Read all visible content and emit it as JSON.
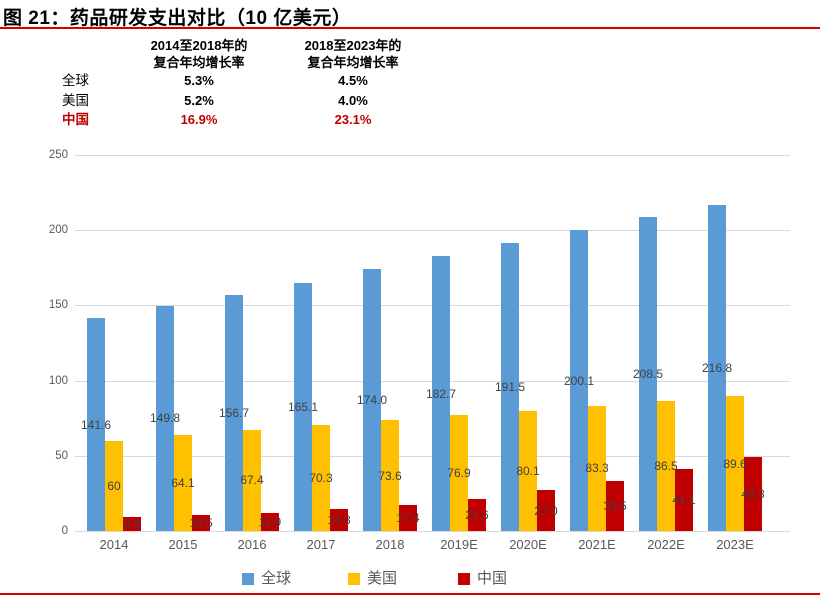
{
  "title": "图 21：药品研发支出对比（10 亿美元）",
  "accent_colors": {
    "rule_red": "#D40000",
    "highlight_red": "#C00000",
    "axis_text": "#595959",
    "gridline": "#D9D9D9",
    "data_label": "#404040"
  },
  "cagr_table": {
    "column_headers": [
      [
        "2014至2018年的",
        "复合年均增长率"
      ],
      [
        "2018至2023年的",
        "复合年均增长率"
      ]
    ],
    "rows": [
      {
        "label": "全球",
        "values": [
          "5.3%",
          "4.5%"
        ],
        "highlight": false
      },
      {
        "label": "美国",
        "values": [
          "5.2%",
          "4.0%"
        ],
        "highlight": false
      },
      {
        "label": "中国",
        "values": [
          "16.9%",
          "23.1%"
        ],
        "highlight": true
      }
    ]
  },
  "chart_data": {
    "type": "bar",
    "title": "药品研发支出对比（10 亿美元）",
    "unit": "10 亿美元",
    "categories": [
      "2014",
      "2015",
      "2016",
      "2017",
      "2018",
      "2019E",
      "2020E",
      "2021E",
      "2022E",
      "2023E"
    ],
    "series": [
      {
        "key": "global",
        "name": "全球",
        "color": "#5B9BD5",
        "values": [
          141.6,
          149.8,
          156.7,
          165.1,
          174.0,
          182.7,
          191.5,
          200.1,
          208.5,
          216.8
        ],
        "labels": [
          "141.6",
          "149.8",
          "156.7",
          "165.1",
          "174.0",
          "182.7",
          "191.5",
          "200.1",
          "208.5",
          "216.8"
        ]
      },
      {
        "key": "us",
        "name": "美国",
        "color": "#FFC000",
        "values": [
          60,
          64.1,
          67.4,
          70.3,
          73.6,
          76.9,
          80.1,
          83.3,
          86.5,
          89.6
        ],
        "labels": [
          "60",
          "64.1",
          "67.4",
          "70.3",
          "73.6",
          "76.9",
          "80.1",
          "83.3",
          "86.5",
          "89.6"
        ]
      },
      {
        "key": "china",
        "name": "中国",
        "color": "#C00000",
        "values": [
          9.3,
          10.5,
          11.9,
          14.3,
          17.4,
          21.6,
          27.0,
          33.5,
          41.1,
          49.3
        ],
        "labels": [
          "9.3",
          "10.5",
          "11.9",
          "14.3",
          "17.4",
          "21.6",
          "27.0",
          "33.5",
          "41.1",
          "49.3"
        ]
      }
    ],
    "ylim": [
      0,
      250
    ],
    "yticks": [
      0,
      50,
      100,
      150,
      200,
      250
    ],
    "grid": true,
    "legend_position": "bottom",
    "data_labels": "center"
  }
}
